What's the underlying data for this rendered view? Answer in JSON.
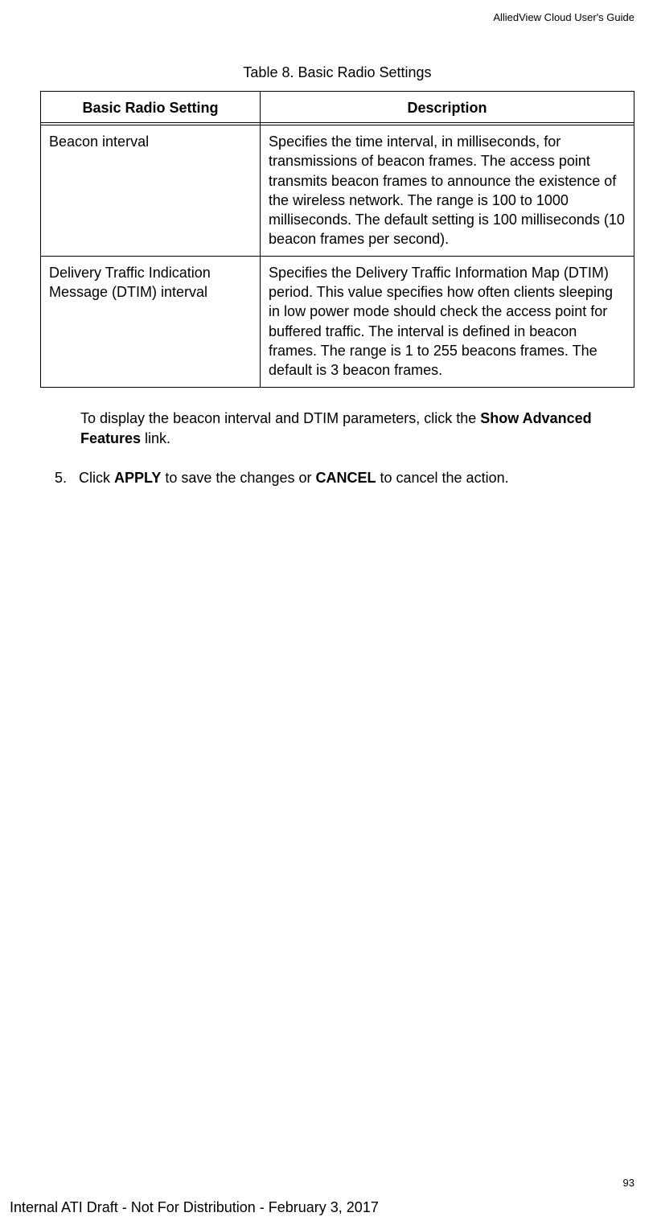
{
  "header": {
    "guide_title": "AlliedView Cloud User's Guide"
  },
  "table": {
    "caption": "Table 8. Basic Radio Settings",
    "columns": [
      "Basic Radio Setting",
      "Description"
    ],
    "rows": [
      {
        "setting": "Beacon interval",
        "description": "Specifies the time interval, in milliseconds, for transmissions of beacon frames. The access point transmits beacon frames to announce the existence of the wireless network. The range is 100 to 1000 milliseconds. The default setting is 100 milliseconds (10 beacon frames per second)."
      },
      {
        "setting": "Delivery Traffic Indication Message (DTIM) interval",
        "description": "Specifies the Delivery Traffic Information Map (DTIM) period. This value specifies how often clients sleeping in low power mode should check the access point for buffered traffic. The interval is defined in beacon frames. The range is 1 to 255 beacons frames. The default is 3 beacon frames."
      }
    ]
  },
  "body": {
    "para1_pre": "To display the beacon interval and DTIM parameters, click the ",
    "para1_bold": "Show Advanced Features",
    "para1_post": " link.",
    "step_num": "5.",
    "step_pre": "Click ",
    "step_bold1": "APPLY",
    "step_mid": " to save the changes or ",
    "step_bold2": "CANCEL",
    "step_post": " to cancel the action."
  },
  "page_number": "93",
  "footer": "Internal ATI Draft - Not For Distribution - February 3, 2017",
  "colors": {
    "text": "#000000",
    "background": "#ffffff",
    "border": "#000000"
  },
  "fonts": {
    "body_size_pt": 18,
    "header_size_pt": 13,
    "family": "Arial, Helvetica, sans-serif"
  }
}
